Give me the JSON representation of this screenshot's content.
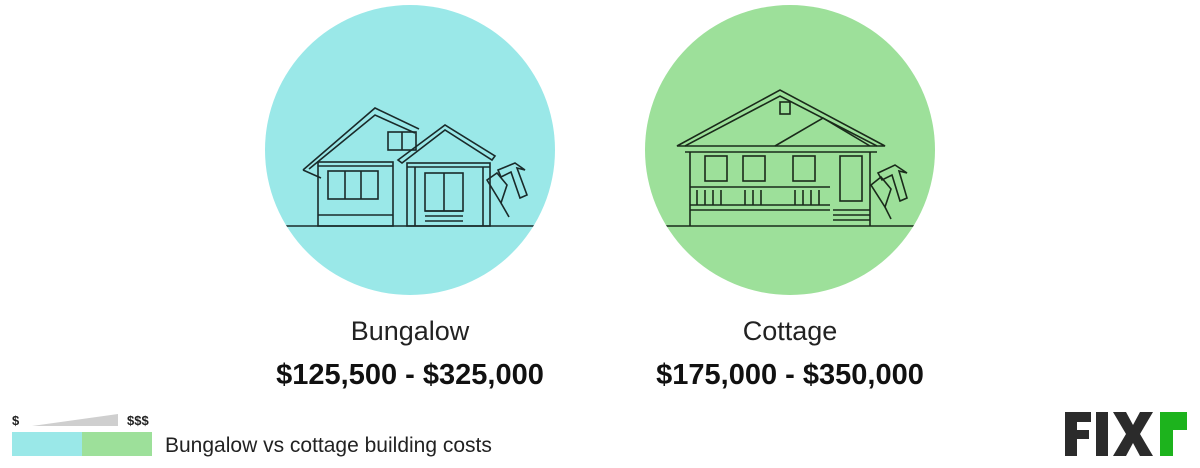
{
  "items": [
    {
      "name": "Bungalow",
      "price": "$125,500 - $325,000",
      "color": "#9ae8e8"
    },
    {
      "name": "Cottage",
      "price": "$175,000 - $350,000",
      "color": "#9de09a"
    }
  ],
  "legend": {
    "low": "$",
    "high": "$$$",
    "label": "Bungalow vs cottage building costs"
  },
  "logo": {
    "text": "FIXR",
    "accent": "#1db31d"
  }
}
